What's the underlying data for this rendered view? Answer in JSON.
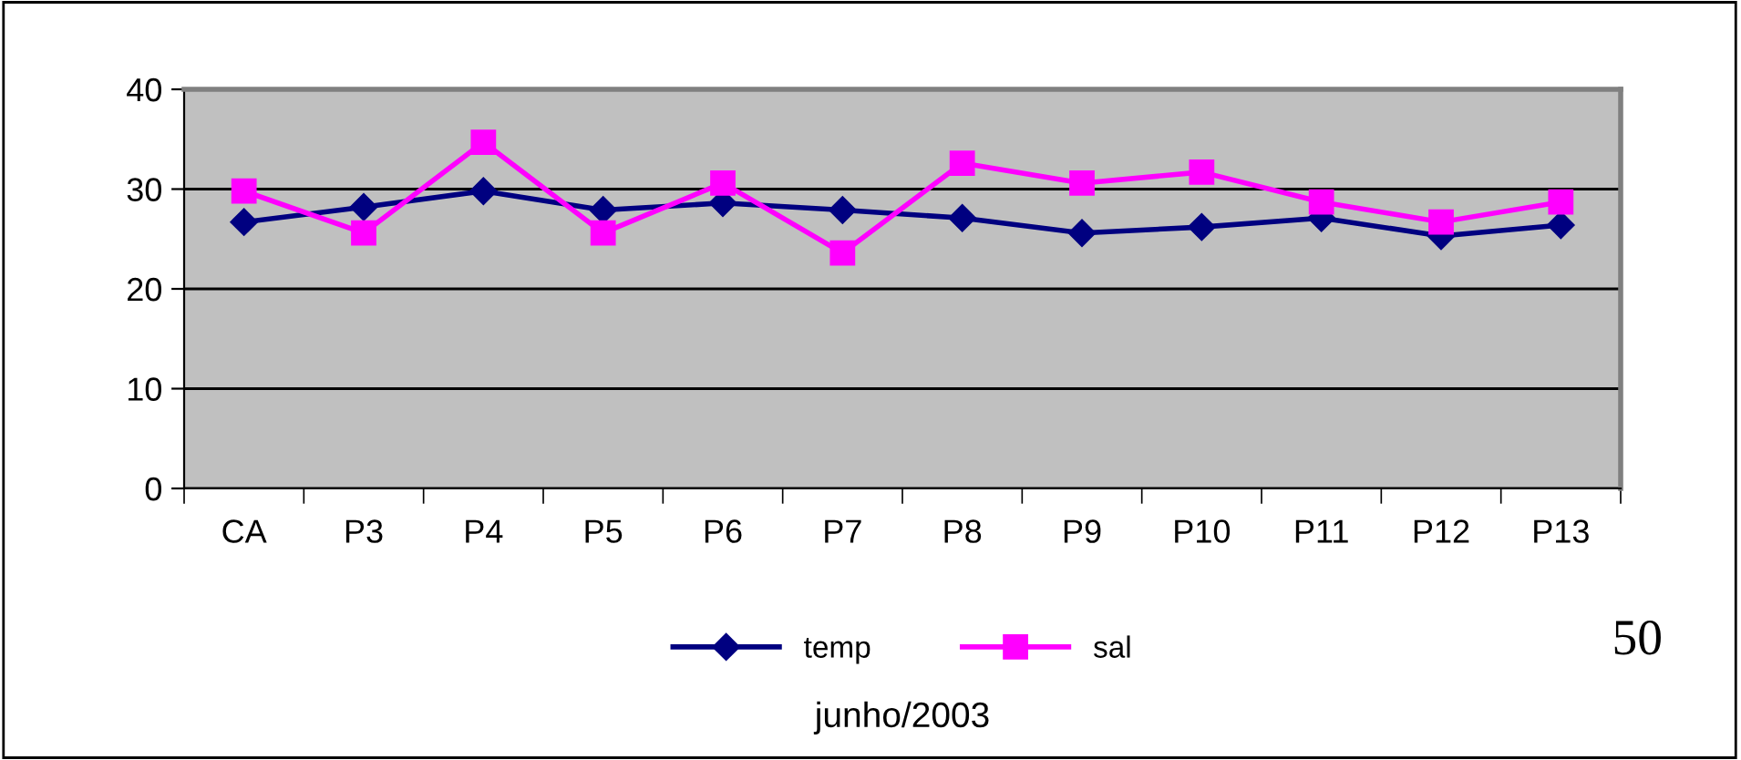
{
  "chart_data": {
    "type": "line",
    "xlabel": "junho/2003",
    "categories": [
      "CA",
      "P3",
      "P4",
      "P5",
      "P6",
      "P7",
      "P8",
      "P9",
      "P10",
      "P11",
      "P12",
      "P13"
    ],
    "series": [
      {
        "name": "temp",
        "color": "#000080",
        "marker": "diamond",
        "values": [
          26.7,
          28.2,
          29.8,
          27.9,
          28.6,
          27.9,
          27.1,
          25.6,
          26.2,
          27.1,
          25.3,
          26.4
        ]
      },
      {
        "name": "sal",
        "color": "#ff00ff",
        "marker": "square",
        "values": [
          29.8,
          25.6,
          34.7,
          25.6,
          30.6,
          23.6,
          32.6,
          30.6,
          31.7,
          28.7,
          26.7,
          28.7
        ]
      }
    ],
    "ylim": [
      0,
      40
    ],
    "yticks": [
      0,
      10,
      20,
      30,
      40
    ],
    "grid": "y",
    "legend": "bottom",
    "annotations": [
      "50"
    ]
  }
}
